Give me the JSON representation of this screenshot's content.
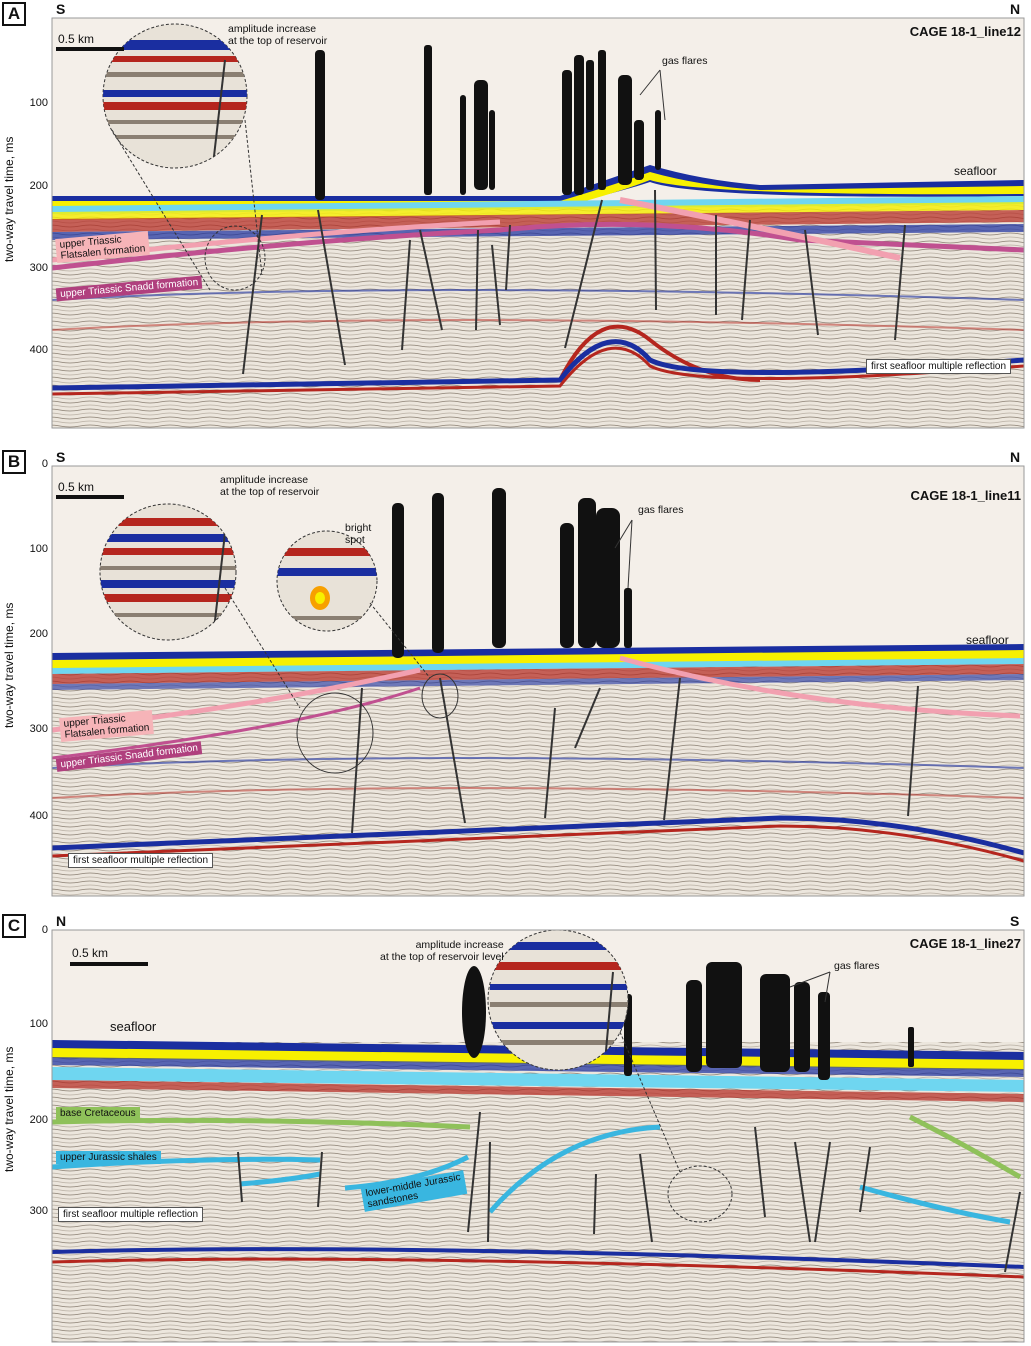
{
  "panels": [
    {
      "letter": "A",
      "dir_left": "S",
      "dir_right": "N",
      "line": "CAGE 18-1_line12",
      "scale": "0.5 km",
      "ylabel": "two-way travel time, ms",
      "ticks": [
        "100",
        "200",
        "300",
        "400"
      ],
      "labels": {
        "amplitude": [
          "amplitude increase",
          "at the top of reservoir"
        ],
        "gas": "gas flares",
        "seafloor": "seafloor",
        "multiple": "first seafloor multiple reflection",
        "flatsalen": [
          "upper Triassic",
          "Flatsalen formation"
        ],
        "snadd": "upper Triassic Snadd formation"
      }
    },
    {
      "letter": "B",
      "dir_left": "S",
      "dir_right": "N",
      "line": "CAGE 18-1_line11",
      "scale": "0.5 km",
      "ylabel": "two-way travel time, ms",
      "zero": "0",
      "ticks": [
        "100",
        "200",
        "300",
        "400"
      ],
      "labels": {
        "amplitude": [
          "amplitude increase",
          "at the top of reservoir"
        ],
        "bright": [
          "bright",
          "spot"
        ],
        "gas": "gas flares",
        "seafloor": "seafloor",
        "multiple": "first seafloor multiple reflection",
        "flatsalen": [
          "upper Triassic",
          "Flatsalen formation"
        ],
        "snadd": "upper Triassic Snadd formation"
      }
    },
    {
      "letter": "C",
      "dir_left": "N",
      "dir_right": "S",
      "line": "CAGE 18-1_line27",
      "scale": "0.5 km",
      "ylabel": "two-way travel time, ms",
      "zero": "0",
      "ticks": [
        "100",
        "200",
        "300"
      ],
      "labels": {
        "amplitude": [
          "amplitude increase",
          "at the top of reservoir level"
        ],
        "gas": "gas flares",
        "seafloor": "seafloor",
        "multiple": "first seafloor multiple reflection",
        "cretaceous": "base Cretaceous",
        "jur_shales": "upper Jurassic shales",
        "jur_sand": [
          "lower-middle Jurassic",
          "sandstones"
        ]
      }
    }
  ],
  "colors": {
    "seafloor_yellow": "#f7f000",
    "seafloor_cyan": "#6fd6f0",
    "blue_reflector": "#1a2ea0",
    "red_reflector": "#b5261e",
    "flatsalen": "#f2a0b0",
    "snadd": "#c05090",
    "cretaceous": "#8fc15a",
    "jurassic": "#39b6e0",
    "background": "#f4efe9"
  }
}
